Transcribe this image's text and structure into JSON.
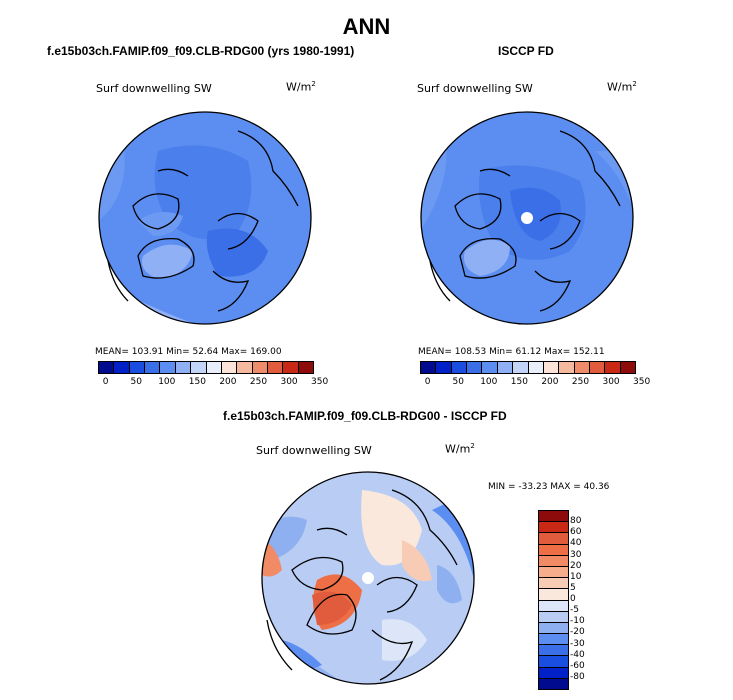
{
  "title": "ANN",
  "panel_left": {
    "header": "f.e15b03ch.FAMIP.f09_f09.CLB-RDG00 (yrs 1980-1991)",
    "variable": "Surf downwelling SW",
    "units_base": "W/m",
    "units_exp": "2",
    "stats": "MEAN= 103.91   Min=  52.64   Max= 169.00"
  },
  "panel_right": {
    "header": "ISCCP FD",
    "variable": "Surf downwelling SW",
    "units_base": "W/m",
    "units_exp": "2",
    "stats": "MEAN= 108.53   Min=  61.12   Max= 152.11"
  },
  "panel_diff": {
    "header": "f.e15b03ch.FAMIP.f09_f09.CLB-RDG00 - ISCCP FD",
    "variable": "Surf downwelling SW",
    "units_base": "W/m",
    "units_exp": "2",
    "stats": "MIN = -33.23  MAX =  40.36"
  },
  "colorbar_abs": {
    "labels": [
      "0",
      "50",
      "100",
      "150",
      "200",
      "250",
      "300",
      "350"
    ],
    "colors": [
      "#000b8f",
      "#0020c8",
      "#1a4ee0",
      "#3a6fe8",
      "#5b8ef0",
      "#8fb0f5",
      "#c2d4f8",
      "#e8eefa",
      "#fbe4d7",
      "#f5b9a0",
      "#ee8b6a",
      "#e05c3c",
      "#c82814",
      "#8e0b0b"
    ]
  },
  "colorbar_diff": {
    "labels": [
      "80",
      "60",
      "40",
      "30",
      "20",
      "10",
      "5",
      "0",
      "-5",
      "-10",
      "-20",
      "-30",
      "-40",
      "-60",
      "-80"
    ],
    "colors": [
      "#8e0b0b",
      "#c82814",
      "#e05c3c",
      "#ee6e46",
      "#f08b66",
      "#f5ad8c",
      "#f8ccb4",
      "#fbe8dc",
      "#dce6f8",
      "#b8ccf4",
      "#8fb0f0",
      "#5b8ef0",
      "#3a6fe8",
      "#1a4ee0",
      "#0020c8",
      "#000b8f"
    ]
  }
}
